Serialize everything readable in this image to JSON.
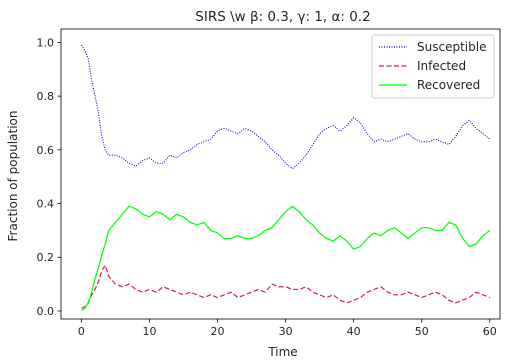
{
  "chart_data": {
    "type": "line",
    "title": "SIRS \\w β: 0.3, γ: 1, α: 0.2",
    "xlabel": "Time",
    "ylabel": "Fraction of population",
    "xlim": [
      -3,
      61.5
    ],
    "ylim": [
      -0.03,
      1.05
    ],
    "xticks": [
      0,
      10,
      20,
      30,
      40,
      50,
      60
    ],
    "yticks": [
      0.0,
      0.2,
      0.4,
      0.6,
      0.8,
      1.0
    ],
    "ytick_labels": [
      "0.0",
      "0.2",
      "0.4",
      "0.6",
      "0.8",
      "1.0"
    ],
    "grid": false,
    "legend_position": "top-right",
    "series": [
      {
        "name": "Susceptible",
        "color": "#0000ff",
        "linestyle": "dotted",
        "points": [
          [
            0,
            0.99
          ],
          [
            0.5,
            0.97
          ],
          [
            1,
            0.94
          ],
          [
            1.5,
            0.86
          ],
          [
            2,
            0.8
          ],
          [
            2.5,
            0.74
          ],
          [
            3,
            0.65
          ],
          [
            3.5,
            0.6
          ],
          [
            4,
            0.58
          ],
          [
            5,
            0.58
          ],
          [
            6,
            0.57
          ],
          [
            7,
            0.55
          ],
          [
            8,
            0.54
          ],
          [
            9,
            0.56
          ],
          [
            10,
            0.57
          ],
          [
            11,
            0.55
          ],
          [
            12,
            0.55
          ],
          [
            13,
            0.58
          ],
          [
            14,
            0.57
          ],
          [
            15,
            0.59
          ],
          [
            16,
            0.6
          ],
          [
            17,
            0.62
          ],
          [
            18,
            0.63
          ],
          [
            19,
            0.64
          ],
          [
            20,
            0.67
          ],
          [
            21,
            0.68
          ],
          [
            22,
            0.67
          ],
          [
            23,
            0.66
          ],
          [
            24,
            0.68
          ],
          [
            25,
            0.67
          ],
          [
            26,
            0.65
          ],
          [
            27,
            0.63
          ],
          [
            28,
            0.6
          ],
          [
            29,
            0.58
          ],
          [
            30,
            0.55
          ],
          [
            31,
            0.53
          ],
          [
            32,
            0.55
          ],
          [
            33,
            0.58
          ],
          [
            34,
            0.62
          ],
          [
            35,
            0.66
          ],
          [
            36,
            0.68
          ],
          [
            37,
            0.69
          ],
          [
            38,
            0.67
          ],
          [
            39,
            0.69
          ],
          [
            40,
            0.72
          ],
          [
            41,
            0.7
          ],
          [
            42,
            0.66
          ],
          [
            43,
            0.63
          ],
          [
            44,
            0.64
          ],
          [
            45,
            0.63
          ],
          [
            46,
            0.64
          ],
          [
            47,
            0.65
          ],
          [
            48,
            0.66
          ],
          [
            49,
            0.64
          ],
          [
            50,
            0.63
          ],
          [
            51,
            0.63
          ],
          [
            52,
            0.64
          ],
          [
            53,
            0.63
          ],
          [
            54,
            0.62
          ],
          [
            55,
            0.65
          ],
          [
            56,
            0.69
          ],
          [
            57,
            0.71
          ],
          [
            58,
            0.68
          ],
          [
            59,
            0.66
          ],
          [
            60,
            0.64
          ]
        ]
      },
      {
        "name": "Infected",
        "color": "#e41a3c",
        "linestyle": "dashed",
        "points": [
          [
            0,
            0.01
          ],
          [
            0.5,
            0.015
          ],
          [
            1,
            0.03
          ],
          [
            1.5,
            0.06
          ],
          [
            2,
            0.08
          ],
          [
            2.5,
            0.11
          ],
          [
            3,
            0.15
          ],
          [
            3.5,
            0.17
          ],
          [
            4,
            0.13
          ],
          [
            5,
            0.1
          ],
          [
            6,
            0.09
          ],
          [
            7,
            0.1
          ],
          [
            8,
            0.08
          ],
          [
            9,
            0.07
          ],
          [
            10,
            0.08
          ],
          [
            11,
            0.07
          ],
          [
            12,
            0.09
          ],
          [
            13,
            0.08
          ],
          [
            14,
            0.07
          ],
          [
            15,
            0.06
          ],
          [
            16,
            0.07
          ],
          [
            17,
            0.06
          ],
          [
            18,
            0.05
          ],
          [
            19,
            0.06
          ],
          [
            20,
            0.05
          ],
          [
            21,
            0.06
          ],
          [
            22,
            0.07
          ],
          [
            23,
            0.05
          ],
          [
            24,
            0.06
          ],
          [
            25,
            0.07
          ],
          [
            26,
            0.08
          ],
          [
            27,
            0.07
          ],
          [
            28,
            0.1
          ],
          [
            29,
            0.09
          ],
          [
            30,
            0.09
          ],
          [
            31,
            0.08
          ],
          [
            32,
            0.08
          ],
          [
            33,
            0.09
          ],
          [
            34,
            0.07
          ],
          [
            35,
            0.06
          ],
          [
            36,
            0.05
          ],
          [
            37,
            0.06
          ],
          [
            38,
            0.04
          ],
          [
            39,
            0.03
          ],
          [
            40,
            0.04
          ],
          [
            41,
            0.05
          ],
          [
            42,
            0.07
          ],
          [
            43,
            0.08
          ],
          [
            44,
            0.09
          ],
          [
            45,
            0.07
          ],
          [
            46,
            0.06
          ],
          [
            47,
            0.06
          ],
          [
            48,
            0.07
          ],
          [
            49,
            0.06
          ],
          [
            50,
            0.05
          ],
          [
            51,
            0.06
          ],
          [
            52,
            0.07
          ],
          [
            53,
            0.06
          ],
          [
            54,
            0.04
          ],
          [
            55,
            0.03
          ],
          [
            56,
            0.04
          ],
          [
            57,
            0.05
          ],
          [
            58,
            0.07
          ],
          [
            59,
            0.06
          ],
          [
            60,
            0.05
          ]
        ]
      },
      {
        "name": "Recovered",
        "color": "#00ff00",
        "linestyle": "solid",
        "points": [
          [
            0,
            0.0
          ],
          [
            0.5,
            0.01
          ],
          [
            1,
            0.03
          ],
          [
            1.5,
            0.07
          ],
          [
            2,
            0.12
          ],
          [
            2.5,
            0.16
          ],
          [
            3,
            0.21
          ],
          [
            3.5,
            0.25
          ],
          [
            4,
            0.3
          ],
          [
            5,
            0.33
          ],
          [
            6,
            0.36
          ],
          [
            7,
            0.39
          ],
          [
            8,
            0.38
          ],
          [
            9,
            0.36
          ],
          [
            10,
            0.35
          ],
          [
            11,
            0.37
          ],
          [
            12,
            0.36
          ],
          [
            13,
            0.34
          ],
          [
            14,
            0.36
          ],
          [
            15,
            0.35
          ],
          [
            16,
            0.33
          ],
          [
            17,
            0.32
          ],
          [
            18,
            0.33
          ],
          [
            19,
            0.3
          ],
          [
            20,
            0.29
          ],
          [
            21,
            0.27
          ],
          [
            22,
            0.27
          ],
          [
            23,
            0.28
          ],
          [
            24,
            0.27
          ],
          [
            25,
            0.27
          ],
          [
            26,
            0.28
          ],
          [
            27,
            0.3
          ],
          [
            28,
            0.31
          ],
          [
            29,
            0.34
          ],
          [
            30,
            0.37
          ],
          [
            31,
            0.39
          ],
          [
            32,
            0.37
          ],
          [
            33,
            0.34
          ],
          [
            34,
            0.32
          ],
          [
            35,
            0.29
          ],
          [
            36,
            0.27
          ],
          [
            37,
            0.26
          ],
          [
            38,
            0.28
          ],
          [
            39,
            0.26
          ],
          [
            40,
            0.23
          ],
          [
            41,
            0.24
          ],
          [
            42,
            0.27
          ],
          [
            43,
            0.29
          ],
          [
            44,
            0.28
          ],
          [
            45,
            0.3
          ],
          [
            46,
            0.31
          ],
          [
            47,
            0.29
          ],
          [
            48,
            0.27
          ],
          [
            49,
            0.29
          ],
          [
            50,
            0.31
          ],
          [
            51,
            0.31
          ],
          [
            52,
            0.3
          ],
          [
            53,
            0.3
          ],
          [
            54,
            0.33
          ],
          [
            55,
            0.32
          ],
          [
            56,
            0.27
          ],
          [
            57,
            0.24
          ],
          [
            58,
            0.25
          ],
          [
            59,
            0.28
          ],
          [
            60,
            0.3
          ]
        ]
      }
    ]
  }
}
